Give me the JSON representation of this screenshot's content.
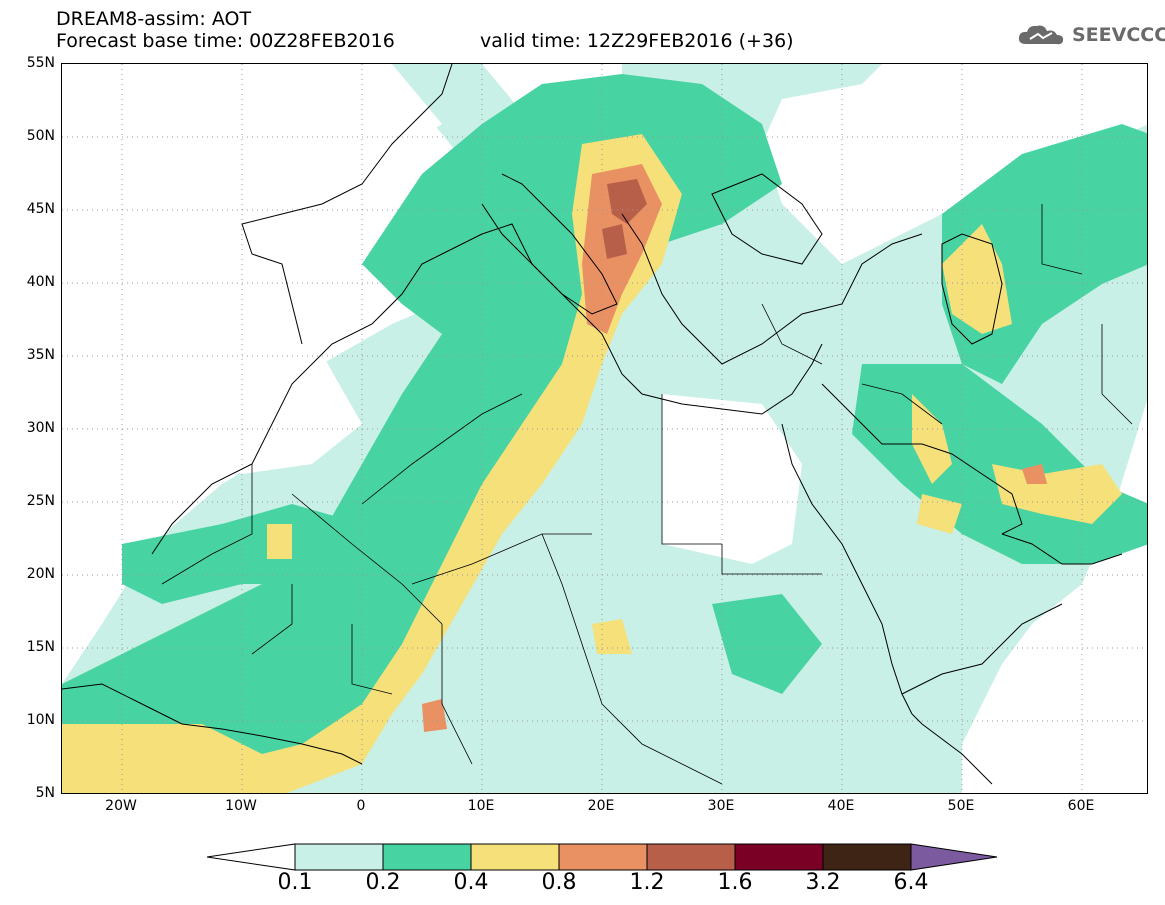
{
  "header": {
    "model_line": "DREAM8-assim: AOT",
    "base_time_line": "Forecast base time: 00Z28FEB2016",
    "valid_time_line": "valid time: 12Z29FEB2016 (+36)"
  },
  "logo": {
    "text": "SEEVCCC",
    "icon": "cloud-logo-icon"
  },
  "map": {
    "latitude_labels": [
      "55N",
      "50N",
      "45N",
      "40N",
      "35N",
      "30N",
      "25N",
      "20N",
      "15N",
      "10N",
      "5N"
    ],
    "longitude_labels": [
      "20W",
      "10W",
      "0",
      "10E",
      "20E",
      "30E",
      "40E",
      "50E",
      "60E"
    ],
    "field": "AOT",
    "grid": "dotted"
  },
  "colorbar": {
    "labels": [
      "0.1",
      "0.2",
      "0.4",
      "0.8",
      "1.2",
      "1.6",
      "3.2",
      "6.4"
    ],
    "colors": [
      "#c8f0e6",
      "#48d3a2",
      "#f5e07a",
      "#e99163",
      "#b85f4a",
      "#7a0026",
      "#3d2414",
      "#7b5aa0"
    ]
  }
}
